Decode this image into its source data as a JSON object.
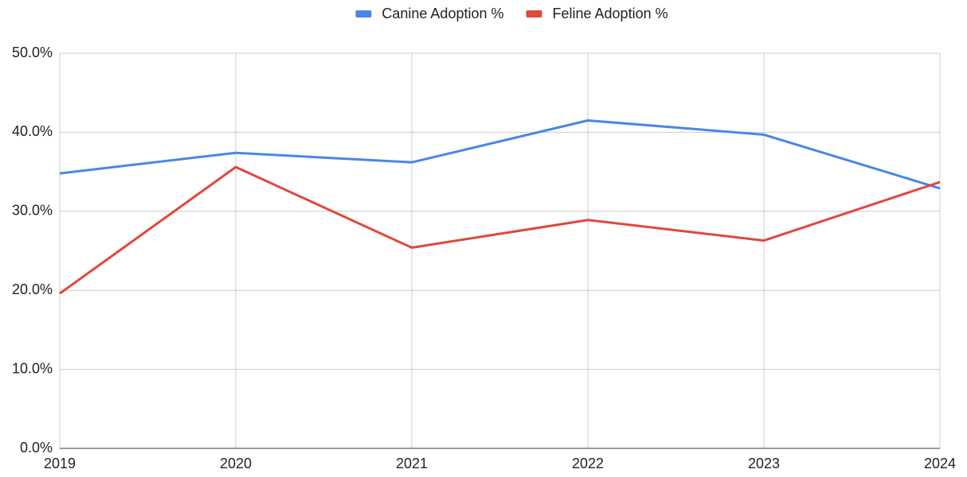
{
  "chart_data": {
    "type": "line",
    "x": [
      2019,
      2020,
      2021,
      2022,
      2023,
      2024
    ],
    "xlim": [
      2019,
      2024
    ],
    "xticks": [
      2019,
      2020,
      2021,
      2022,
      2023,
      2024
    ],
    "ylim": [
      0,
      50
    ],
    "yticks": [
      {
        "value": 0,
        "label": "0.0%"
      },
      {
        "value": 10,
        "label": "10.0%"
      },
      {
        "value": 20,
        "label": "20.0%"
      },
      {
        "value": 30,
        "label": "30.0%"
      },
      {
        "value": 40,
        "label": "40.0%"
      },
      {
        "value": 50,
        "label": "50.0%"
      }
    ],
    "grid": true,
    "legend": "top",
    "series": [
      {
        "name": "Canine Adoption %",
        "color": "#4a86e8",
        "values": [
          34.8,
          37.4,
          36.2,
          41.5,
          39.7,
          32.9
        ]
      },
      {
        "name": "Feline Adoption %",
        "color": "#e0483b",
        "values": [
          19.6,
          35.6,
          25.4,
          28.9,
          26.3,
          33.7
        ]
      }
    ]
  }
}
